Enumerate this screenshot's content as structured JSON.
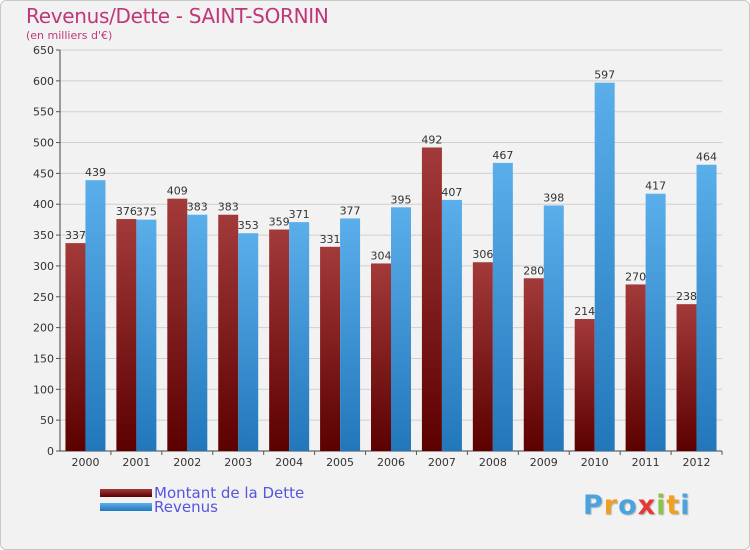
{
  "header": {
    "title": "Revenus/Dette - SAINT-SORNIN",
    "subtitle": "(en milliers d'€)"
  },
  "colors": {
    "debt_light": "#a33a3a",
    "debt_dark": "#5c0000",
    "revenue_light": "#5aaeea",
    "revenue_dark": "#2277bb",
    "title": "#c0367a",
    "legend_text": "#5555dd"
  },
  "logo": {
    "letters": [
      "P",
      "r",
      "o",
      "x",
      "i",
      "t",
      "i"
    ],
    "colors": [
      "#4aa3df",
      "#f0a020",
      "#4aa3df",
      "#e53935",
      "#8bc34a",
      "#f0a020",
      "#4aa3df"
    ]
  },
  "chart_data": {
    "type": "bar",
    "title": "Revenus/Dette - SAINT-SORNIN",
    "subtitle": "(en milliers d'€)",
    "categories": [
      "2000",
      "2001",
      "2002",
      "2003",
      "2004",
      "2005",
      "2006",
      "2007",
      "2008",
      "2009",
      "2010",
      "2011",
      "2012"
    ],
    "series": [
      {
        "name": "Montant de la Dette",
        "values": [
          337,
          376,
          409,
          383,
          359,
          331,
          304,
          492,
          306,
          280,
          214,
          270,
          238
        ]
      },
      {
        "name": "Revenus",
        "values": [
          439,
          375,
          383,
          353,
          371,
          377,
          395,
          407,
          467,
          398,
          597,
          417,
          464
        ]
      }
    ],
    "yticks": [
      "0",
      "50",
      "100",
      "150",
      "200",
      "250",
      "300",
      "350",
      "400",
      "450",
      "500",
      "550",
      "600",
      "650"
    ],
    "ylim": [
      0,
      650
    ],
    "grid": true,
    "legend_position": "bottom-left"
  }
}
